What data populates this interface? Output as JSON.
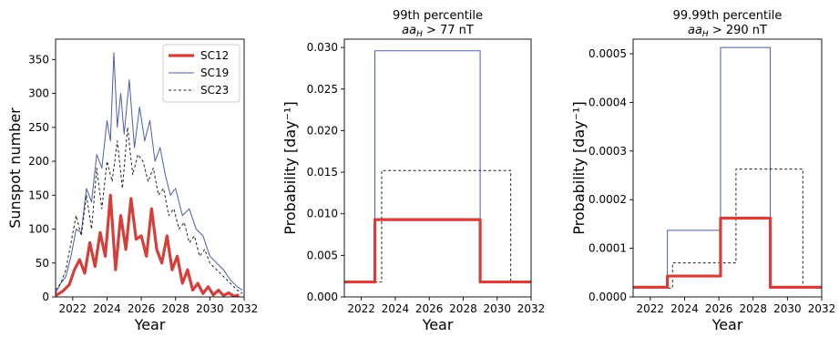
{
  "chart_data": [
    {
      "type": "line",
      "xlabel": "Year",
      "ylabel": "Sunspot number",
      "xlim": [
        2021,
        2032
      ],
      "ylim": [
        0,
        380
      ],
      "xticks": [
        2022,
        2024,
        2026,
        2028,
        2030,
        2032
      ],
      "yticks": [
        0,
        50,
        100,
        150,
        200,
        250,
        300,
        350
      ],
      "legend_position": "top-right",
      "series": [
        {
          "name": "SC12",
          "color": "#d43f3a",
          "style": "solid-thick",
          "x": [
            2021.0,
            2021.4,
            2021.8,
            2022.1,
            2022.4,
            2022.7,
            2023.0,
            2023.3,
            2023.6,
            2023.9,
            2024.2,
            2024.5,
            2024.8,
            2025.1,
            2025.4,
            2025.7,
            2026.0,
            2026.3,
            2026.6,
            2026.9,
            2027.2,
            2027.5,
            2027.8,
            2028.1,
            2028.4,
            2028.7,
            2029.0,
            2029.3,
            2029.6,
            2029.9,
            2030.2,
            2030.5,
            2030.8,
            2031.1,
            2031.4,
            2031.7
          ],
          "y": [
            2,
            8,
            18,
            40,
            55,
            35,
            80,
            45,
            95,
            60,
            150,
            40,
            120,
            70,
            145,
            85,
            90,
            60,
            130,
            70,
            50,
            90,
            40,
            60,
            20,
            40,
            10,
            20,
            5,
            15,
            3,
            10,
            2,
            6,
            1,
            3
          ]
        },
        {
          "name": "SC19",
          "color": "#4a5ea8",
          "style": "solid-thin",
          "x": [
            2021.0,
            2021.3,
            2021.6,
            2021.9,
            2022.2,
            2022.5,
            2022.8,
            2023.1,
            2023.4,
            2023.7,
            2024.0,
            2024.2,
            2024.4,
            2024.6,
            2024.8,
            2025.0,
            2025.3,
            2025.6,
            2025.9,
            2026.2,
            2026.5,
            2026.8,
            2027.1,
            2027.4,
            2027.7,
            2028.0,
            2028.4,
            2028.8,
            2029.2,
            2029.6,
            2030.0,
            2030.4,
            2030.8,
            2031.2,
            2031.6,
            2031.9
          ],
          "y": [
            5,
            20,
            30,
            60,
            100,
            95,
            160,
            140,
            210,
            190,
            260,
            230,
            360,
            250,
            300,
            240,
            320,
            220,
            280,
            230,
            260,
            200,
            220,
            180,
            150,
            160,
            120,
            130,
            100,
            90,
            60,
            50,
            40,
            25,
            15,
            10
          ]
        },
        {
          "name": "SC23",
          "color": "#222222",
          "style": "dashed",
          "x": [
            2021.0,
            2021.3,
            2021.6,
            2021.9,
            2022.2,
            2022.5,
            2022.8,
            2023.1,
            2023.4,
            2023.7,
            2024.0,
            2024.3,
            2024.6,
            2024.9,
            2025.2,
            2025.5,
            2025.8,
            2026.1,
            2026.4,
            2026.7,
            2027.0,
            2027.3,
            2027.6,
            2027.9,
            2028.2,
            2028.5,
            2028.8,
            2029.1,
            2029.4,
            2029.7,
            2030.0,
            2030.4,
            2030.8,
            2031.2,
            2031.6,
            2031.9
          ],
          "y": [
            10,
            20,
            40,
            80,
            120,
            90,
            150,
            100,
            190,
            130,
            200,
            170,
            230,
            160,
            250,
            180,
            210,
            200,
            170,
            190,
            150,
            160,
            120,
            130,
            100,
            110,
            80,
            90,
            60,
            70,
            50,
            40,
            30,
            20,
            10,
            5
          ]
        }
      ]
    },
    {
      "type": "line",
      "title_line1": "99th percentile",
      "title_line2_math": "aa",
      "title_line2_sub": "H",
      "title_line2_rest": " > 77 nT",
      "xlabel": "Year",
      "ylabel": "Probability [day⁻¹]",
      "xlim": [
        2021,
        2032
      ],
      "ylim": [
        0,
        0.031
      ],
      "xticks": [
        2022,
        2024,
        2026,
        2028,
        2030,
        2032
      ],
      "yticks": [
        0.0,
        0.005,
        0.01,
        0.015,
        0.02,
        0.025,
        0.03
      ],
      "ytick_labels": [
        "0.000",
        "0.005",
        "0.010",
        "0.015",
        "0.020",
        "0.025",
        "0.030"
      ],
      "series": [
        {
          "name": "SC19",
          "color": "#4a5ea8",
          "style": "solid-thin",
          "x": [
            2021,
            2022.8,
            2022.8,
            2029.0,
            2029.0,
            2032
          ],
          "y": [
            0.0018,
            0.0018,
            0.0296,
            0.0296,
            0.0018,
            0.0018
          ]
        },
        {
          "name": "SC23",
          "color": "#222222",
          "style": "dashed",
          "x": [
            2021,
            2023.2,
            2023.2,
            2030.8,
            2030.8,
            2032
          ],
          "y": [
            0.0018,
            0.0018,
            0.0152,
            0.0152,
            0.0018,
            0.0018
          ]
        },
        {
          "name": "SC12",
          "color": "#d43f3a",
          "style": "solid-thick",
          "x": [
            2021,
            2022.8,
            2022.8,
            2029.0,
            2029.0,
            2032
          ],
          "y": [
            0.0018,
            0.0018,
            0.0093,
            0.0093,
            0.0018,
            0.0018
          ]
        }
      ]
    },
    {
      "type": "line",
      "title_line1": "99.99th percentile",
      "title_line2_math": "aa",
      "title_line2_sub": "H",
      "title_line2_rest": " > 290 nT",
      "xlabel": "Year",
      "ylabel": "Probability [day⁻¹]",
      "xlim": [
        2021,
        2032
      ],
      "ylim": [
        0,
        0.00053
      ],
      "xticks": [
        2022,
        2024,
        2026,
        2028,
        2030,
        2032
      ],
      "yticks": [
        0.0,
        0.0001,
        0.0002,
        0.0003,
        0.0004,
        0.0005
      ],
      "ytick_labels": [
        "0.0000",
        "0.0001",
        "0.0002",
        "0.0003",
        "0.0004",
        "0.0005"
      ],
      "series": [
        {
          "name": "SC19",
          "color": "#4a5ea8",
          "style": "solid-thin",
          "x": [
            2021,
            2023.0,
            2023.0,
            2026.1,
            2026.1,
            2029.0,
            2029.0,
            2032
          ],
          "y": [
            1.8e-05,
            1.8e-05,
            0.000137,
            0.000137,
            0.000513,
            0.000513,
            1.8e-05,
            1.8e-05
          ]
        },
        {
          "name": "SC23",
          "color": "#222222",
          "style": "dashed",
          "x": [
            2021,
            2023.3,
            2023.3,
            2027.0,
            2027.0,
            2030.9,
            2030.9,
            2032
          ],
          "y": [
            1.8e-05,
            1.8e-05,
            7e-05,
            7e-05,
            0.000263,
            0.000263,
            1.8e-05,
            1.8e-05
          ]
        },
        {
          "name": "SC12",
          "color": "#d43f3a",
          "style": "solid-thick",
          "x": [
            2021,
            2023.0,
            2023.0,
            2026.1,
            2026.1,
            2029.0,
            2029.0,
            2032
          ],
          "y": [
            2e-05,
            2e-05,
            4.3e-05,
            4.3e-05,
            0.000162,
            0.000162,
            2e-05,
            2e-05
          ]
        }
      ]
    }
  ]
}
